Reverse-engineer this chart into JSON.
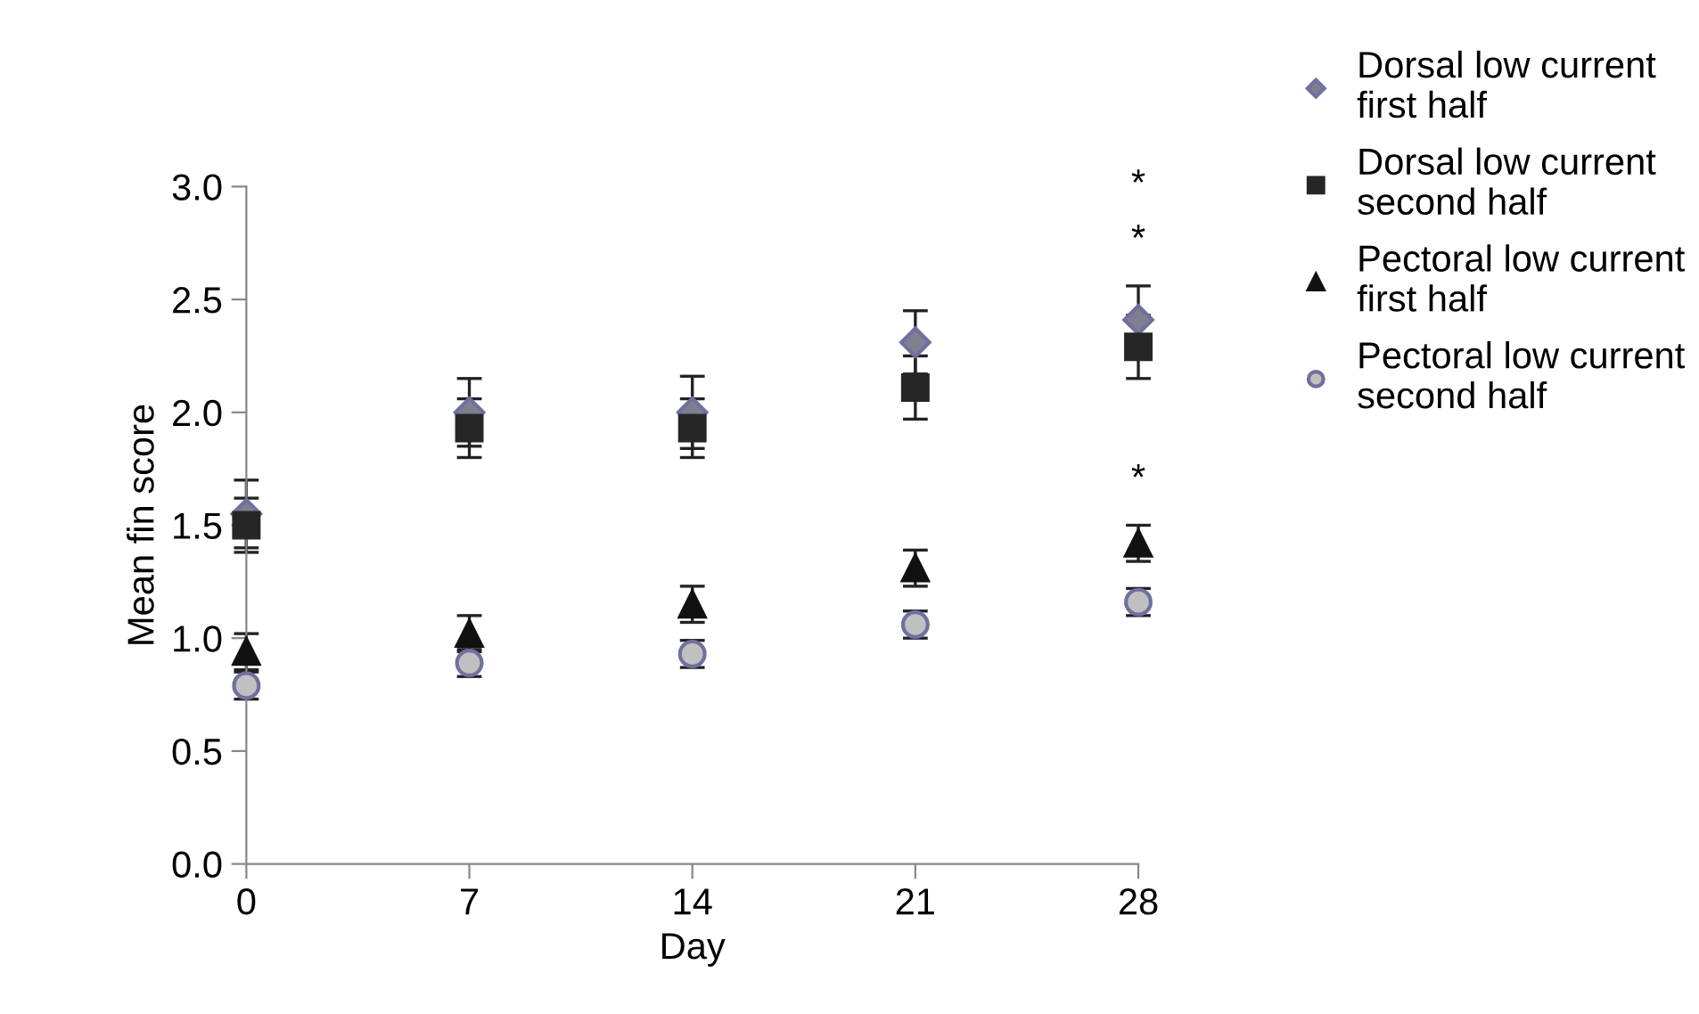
{
  "chart_data": {
    "type": "scatter",
    "xlabel": "Day",
    "ylabel": "Mean fin score",
    "x": [
      0,
      7,
      14,
      21,
      28
    ],
    "xlim": [
      0,
      28
    ],
    "xticks": [
      0,
      7,
      14,
      21,
      28
    ],
    "ylim": [
      0,
      3.0
    ],
    "yticks": [
      {
        "value": 0,
        "label": "0.0"
      },
      {
        "value": 0.5,
        "label": "0.5"
      },
      {
        "value": 1.0,
        "label": "1.0"
      },
      {
        "value": 1.5,
        "label": "1.5"
      },
      {
        "value": 2.0,
        "label": "2.0"
      },
      {
        "value": 2.5,
        "label": "2.5"
      },
      {
        "value": 3.0,
        "label": "3.0"
      }
    ],
    "grid": false,
    "legend": "top right",
    "series": [
      {
        "name": "Dorsal low current first half",
        "color": "#7f7f8f",
        "marker": "diamond",
        "values": [
          1.55,
          2.0,
          2.0,
          2.31,
          2.41
        ],
        "errors": [
          0.15,
          0.15,
          0.16,
          0.14,
          0.15
        ]
      },
      {
        "name": "Dorsal low current second half",
        "color": "#262626",
        "marker": "square",
        "values": [
          1.5,
          1.93,
          1.93,
          2.11,
          2.29
        ],
        "errors": [
          0.12,
          0.13,
          0.13,
          0.14,
          0.14
        ]
      },
      {
        "name": "Pectoral low current first half",
        "color": "#111111",
        "marker": "triangle",
        "values": [
          0.94,
          1.02,
          1.15,
          1.31,
          1.42
        ],
        "errors": [
          0.08,
          0.08,
          0.08,
          0.08,
          0.08
        ]
      },
      {
        "name": "Pectoral low current second half",
        "color": "#c0c0c0",
        "marker": "circle",
        "values": [
          0.79,
          0.89,
          0.93,
          1.06,
          1.16
        ],
        "errors": [
          0.06,
          0.06,
          0.06,
          0.06,
          0.06
        ]
      }
    ],
    "annotations": [
      "*",
      "*",
      "*"
    ]
  }
}
